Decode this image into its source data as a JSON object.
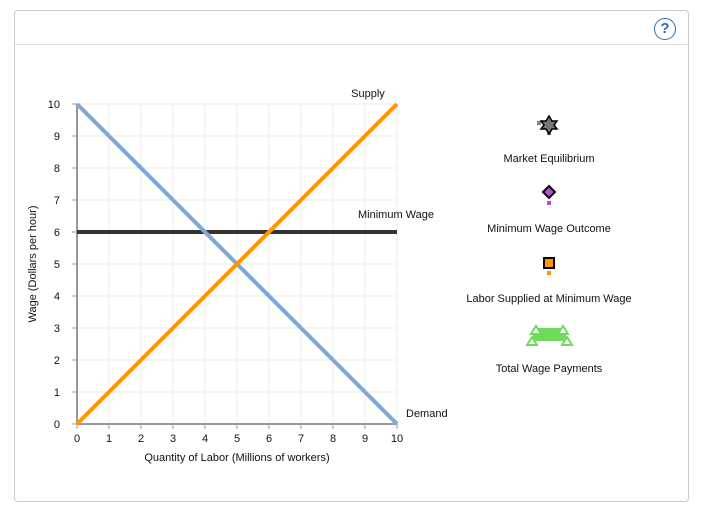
{
  "help_label": "?",
  "chart_data": {
    "type": "line",
    "xlabel": "Quantity of Labor   (Millions of workers)",
    "ylabel": "Wage (Dollars per hour)",
    "xlim": [
      0,
      10
    ],
    "ylim": [
      0,
      10
    ],
    "xticks": [
      0,
      1,
      2,
      3,
      4,
      5,
      6,
      7,
      8,
      9,
      10
    ],
    "yticks": [
      0,
      1,
      2,
      3,
      4,
      5,
      6,
      7,
      8,
      9,
      10
    ],
    "grid": true,
    "series": [
      {
        "name": "Demand",
        "color": "#7aaad6",
        "x": [
          0,
          10
        ],
        "y": [
          10,
          0
        ]
      },
      {
        "name": "Supply",
        "color": "#ff9500",
        "x": [
          0,
          10
        ],
        "y": [
          0,
          10
        ]
      },
      {
        "name": "Minimum Wage",
        "color": "#333333",
        "x": [
          0,
          10
        ],
        "y": [
          6,
          6
        ]
      }
    ]
  },
  "legend": [
    {
      "label": "Market Equilibrium",
      "icon": "star-gray",
      "color": "#888888"
    },
    {
      "label": "Minimum Wage Outcome",
      "icon": "diamond-purple",
      "color": "#b84fd0"
    },
    {
      "label": "Labor Supplied at Minimum Wage",
      "icon": "square-orange",
      "color": "#ff9500"
    },
    {
      "label": "Total Wage Payments",
      "icon": "green-area",
      "color": "#6ddc5a"
    }
  ]
}
